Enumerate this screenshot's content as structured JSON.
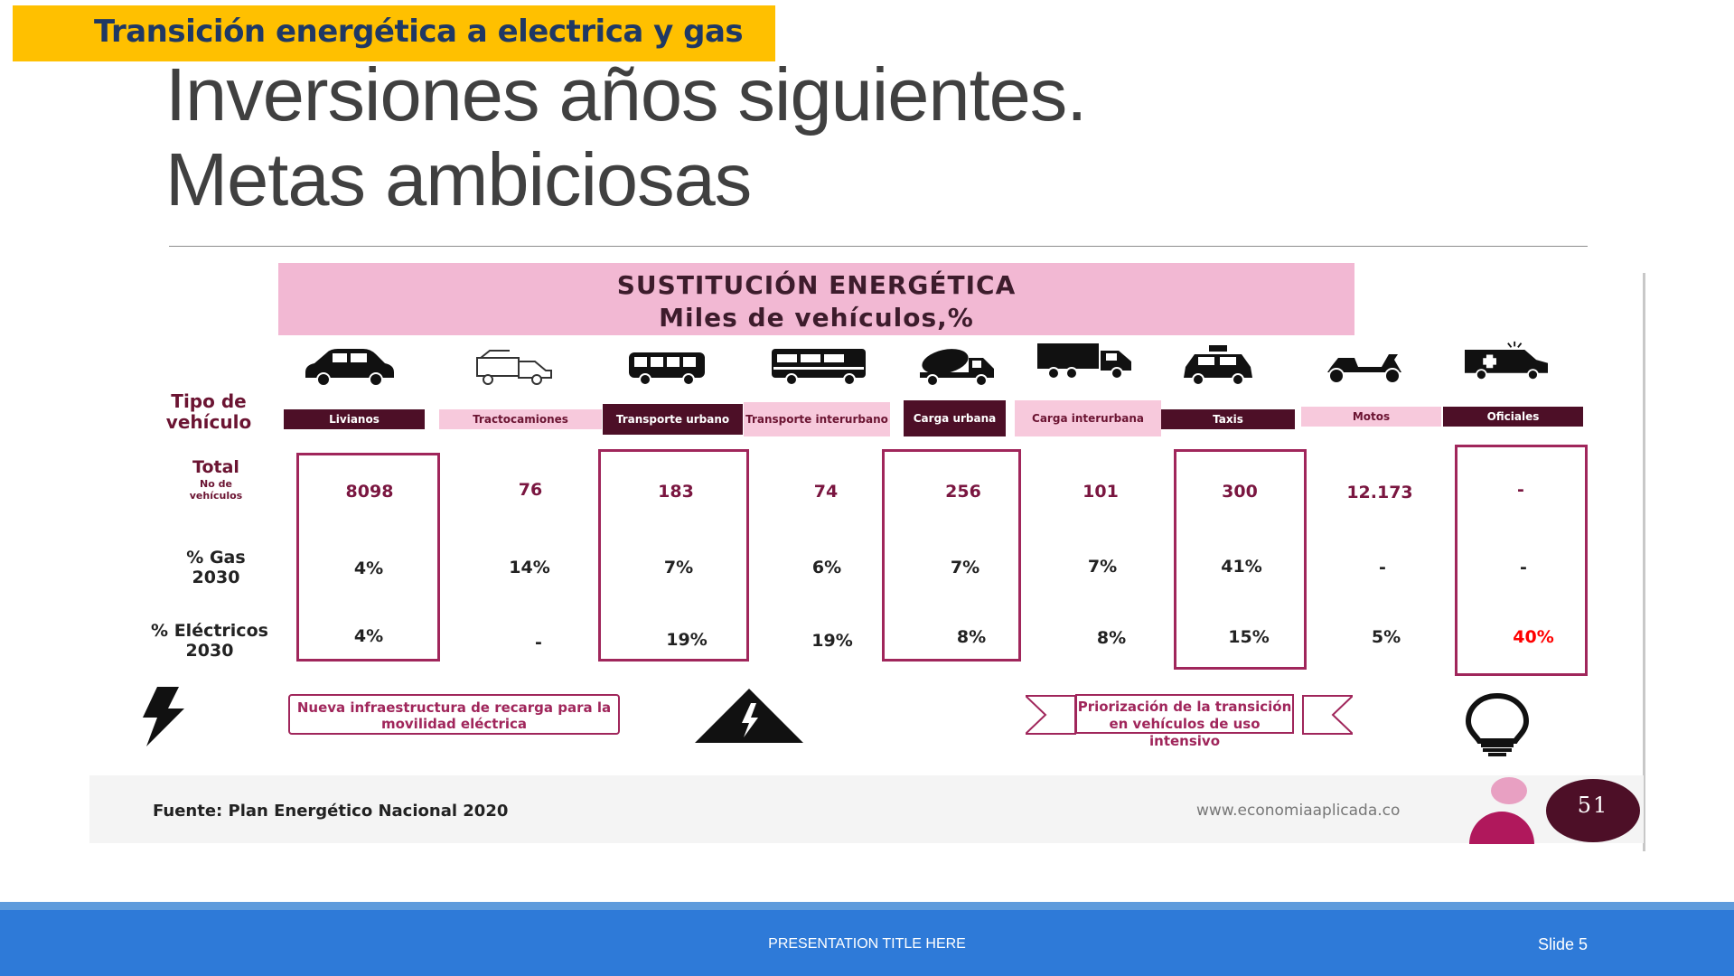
{
  "section_tag": "Transición energética a electrica y gas",
  "slide_title": {
    "line1": "Inversiones años siguientes.",
    "line2": "Metas ambiciosas"
  },
  "figure": {
    "banner_line1": "SUSTITUCIÓN ENERGÉTICA",
    "banner_line2": "Miles de vehículos,%",
    "row_headers": {
      "tipo": "Tipo de vehículo",
      "total": "Total",
      "total_sub": "No de vehículos",
      "gas": "% Gas 2030",
      "elec": "% Eléctricos 2030"
    },
    "columns": [
      {
        "label": "Livianos",
        "icon": "car-icon",
        "total": "8098",
        "gas": "4%",
        "elec": "4%"
      },
      {
        "label": "Tractocamiones",
        "icon": "truck-outline-icon",
        "total": "76",
        "gas": "14%",
        "elec": "-"
      },
      {
        "label": "Transporte urbano",
        "icon": "bus-icon",
        "total": "183",
        "gas": "7%",
        "elec": "19%"
      },
      {
        "label": "Transporte interurbano",
        "icon": "coach-icon",
        "total": "74",
        "gas": "6%",
        "elec": "19%"
      },
      {
        "label": "Carga urbana",
        "icon": "mixer-truck-icon",
        "total": "256",
        "gas": "7%",
        "elec": "8%"
      },
      {
        "label": "Carga interurbana",
        "icon": "lorry-icon",
        "total": "101",
        "gas": "7%",
        "elec": "8%"
      },
      {
        "label": "Taxis",
        "icon": "taxi-icon",
        "total": "300",
        "gas": "41%",
        "elec": "15%"
      },
      {
        "label": "Motos",
        "icon": "scooter-icon",
        "total": "12.173",
        "gas": "-",
        "elec": "5%"
      },
      {
        "label": "Oficiales",
        "icon": "ambulance-icon",
        "total": "-",
        "gas": "-",
        "elec": "40%"
      }
    ],
    "note_left": "Nueva infraestructura de recarga para la movilidad eléctrica",
    "note_right": "Priorización de la transición en vehículos de uso intensivo",
    "source": "Fuente: Plan Energético Nacional 2020",
    "url": "www.economiaaplicada.co",
    "page_number": "51",
    "colors": {
      "maroon": "#4d0f27",
      "pink": "#F2B8D3",
      "accent": "#a0265b",
      "highlight": "#ff0000"
    }
  },
  "footer": {
    "presentation_title": "PRESENTATION TITLE HERE",
    "slide_label": "Slide 5"
  }
}
